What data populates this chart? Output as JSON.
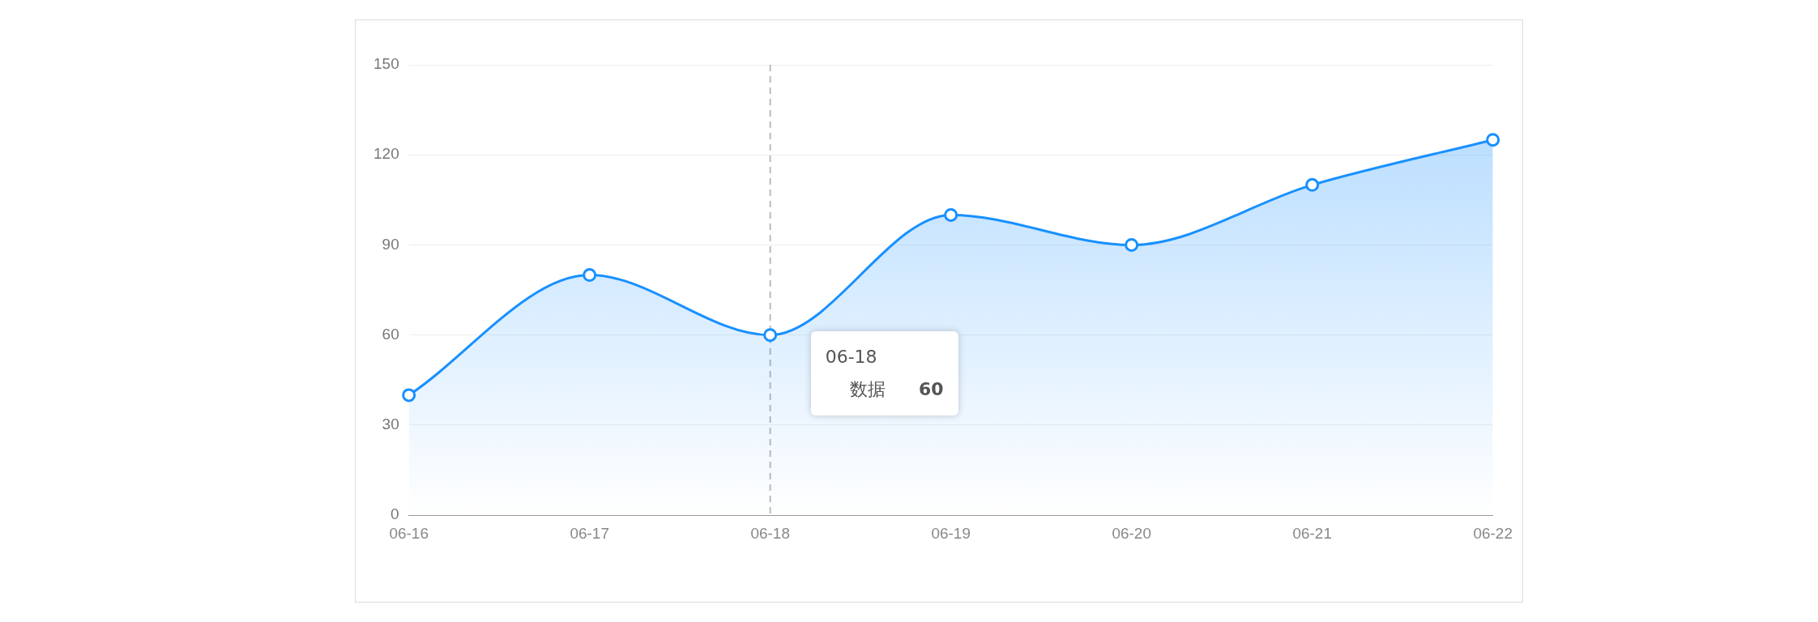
{
  "chart_data": {
    "type": "area",
    "categories": [
      "06-16",
      "06-17",
      "06-18",
      "06-19",
      "06-20",
      "06-21",
      "06-22"
    ],
    "series": [
      {
        "color": "#1890ff",
        "values": [
          40,
          80,
          60,
          100,
          90,
          110,
          125
        ]
      }
    ],
    "ylim": [
      0,
      150
    ],
    "yticks": [
      0,
      30,
      60,
      90,
      120,
      150
    ],
    "grid": "y",
    "legend": false,
    "marker": "circle",
    "line_style": "solid",
    "ref_lines": [
      {
        "axis": "x",
        "value": "06-18",
        "color": "#bbbbbb",
        "line_style": "dashed"
      }
    ],
    "annotations": [
      "06-18",
      "数据",
      "60"
    ]
  }
}
